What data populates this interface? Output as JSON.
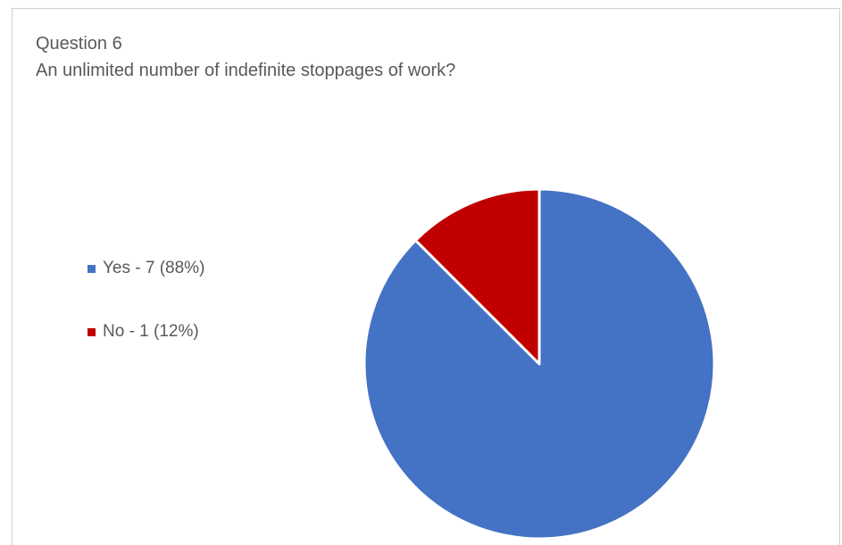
{
  "chart_data": {
    "type": "pie",
    "title": "Question 6",
    "subtitle": "An unlimited number of indefinite stoppages of work?",
    "slices": [
      {
        "label": "Yes - 7 (88%)",
        "value": 7,
        "percent": 88,
        "color": "#4472C4"
      },
      {
        "label": "No - 1 (12%)",
        "value": 1,
        "percent": 12,
        "color": "#C00000"
      }
    ],
    "legend_position": "left",
    "start_angle_deg": 0,
    "direction": "clockwise"
  }
}
